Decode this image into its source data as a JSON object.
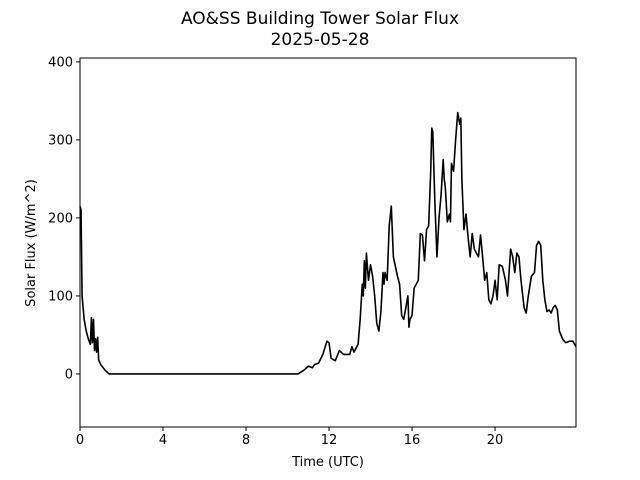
{
  "chart_data": {
    "type": "line",
    "title": "AO&SS Building Tower Solar Flux",
    "subtitle": "2025-05-28",
    "x_label": "Time (UTC)",
    "y_label": "Solar Flux (W/m^2)",
    "x": [
      0,
      0.05,
      0.1,
      0.2,
      0.3,
      0.4,
      0.5,
      0.55,
      0.6,
      0.65,
      0.7,
      0.75,
      0.8,
      0.85,
      0.9,
      1.0,
      1.2,
      1.4,
      10.5,
      10.8,
      11.0,
      11.2,
      11.3,
      11.5,
      11.7,
      11.9,
      12.0,
      12.1,
      12.3,
      12.5,
      12.7,
      13.0,
      13.1,
      13.2,
      13.4,
      13.5,
      13.6,
      13.65,
      13.7,
      13.75,
      13.8,
      13.9,
      14.0,
      14.1,
      14.2,
      14.3,
      14.4,
      14.5,
      14.6,
      14.65,
      14.7,
      14.8,
      14.9,
      15.0,
      15.1,
      15.3,
      15.4,
      15.5,
      15.6,
      15.7,
      15.8,
      15.85,
      15.9,
      16.0,
      16.1,
      16.3,
      16.4,
      16.5,
      16.6,
      16.7,
      16.8,
      16.9,
      16.95,
      17.0,
      17.1,
      17.2,
      17.3,
      17.4,
      17.5,
      17.55,
      17.6,
      17.7,
      17.8,
      17.85,
      17.9,
      18.0,
      18.1,
      18.2,
      18.3,
      18.35,
      18.4,
      18.5,
      18.6,
      18.7,
      18.8,
      18.9,
      19.0,
      19.1,
      19.2,
      19.3,
      19.4,
      19.5,
      19.6,
      19.7,
      19.8,
      19.9,
      20.0,
      20.1,
      20.2,
      20.35,
      20.5,
      20.6,
      20.75,
      20.85,
      20.95,
      21.05,
      21.15,
      21.25,
      21.4,
      21.5,
      21.6,
      21.75,
      21.9,
      22.0,
      22.1,
      22.2,
      22.3,
      22.4,
      22.5,
      22.6,
      22.7,
      22.8,
      22.9,
      23.0,
      23.1,
      23.25,
      23.4,
      23.6,
      23.75,
      23.9
    ],
    "series": [
      {
        "name": "Solar Flux",
        "color": "#000000",
        "values": [
          215,
          210,
          100,
          70,
          55,
          45,
          38,
          72,
          40,
          70,
          30,
          45,
          28,
          47,
          18,
          12,
          5,
          0,
          0,
          5,
          10,
          8,
          12,
          14,
          25,
          42,
          40,
          20,
          17,
          30,
          25,
          25,
          35,
          28,
          38,
          70,
          115,
          100,
          145,
          110,
          155,
          120,
          140,
          125,
          100,
          65,
          55,
          80,
          130,
          115,
          130,
          120,
          190,
          215,
          150,
          125,
          115,
          75,
          70,
          85,
          100,
          60,
          70,
          75,
          110,
          120,
          180,
          178,
          145,
          185,
          190,
          260,
          315,
          310,
          220,
          150,
          200,
          230,
          275,
          250,
          240,
          195,
          205,
          195,
          270,
          260,
          300,
          335,
          320,
          328,
          250,
          185,
          205,
          175,
          150,
          180,
          160,
          155,
          150,
          178,
          150,
          120,
          130,
          95,
          90,
          100,
          120,
          95,
          140,
          138,
          120,
          100,
          160,
          150,
          130,
          155,
          150,
          120,
          85,
          78,
          100,
          125,
          130,
          165,
          170,
          165,
          120,
          95,
          80,
          82,
          78,
          85,
          88,
          82,
          55,
          45,
          40,
          42,
          42,
          35
        ]
      }
    ],
    "xlim": [
      0,
      23.9
    ],
    "xticks": [
      0,
      4,
      8,
      12,
      16,
      20
    ],
    "ylim": [
      -68,
      405
    ],
    "yticks": [
      0,
      100,
      200,
      300,
      400
    ]
  }
}
